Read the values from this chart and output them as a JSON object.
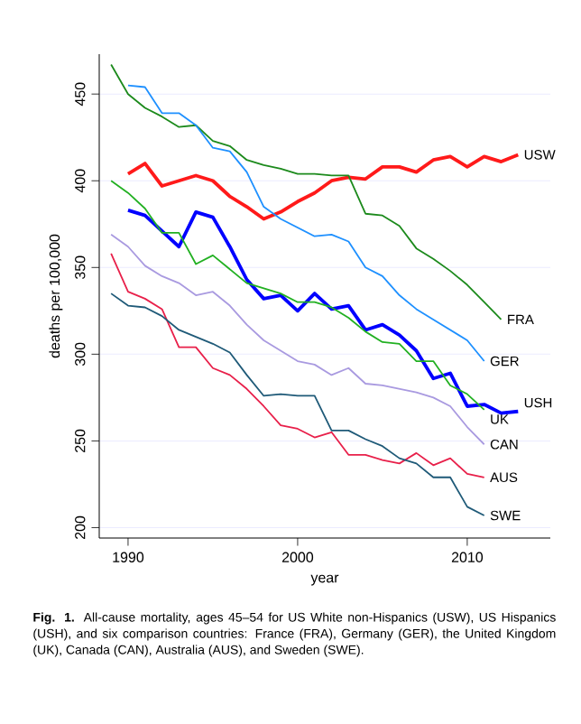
{
  "chart_data": {
    "type": "line",
    "xlabel": "year",
    "ylabel": "deaths per 100,000",
    "xlim": [
      1988.3,
      2014.9
    ],
    "ylim": [
      194,
      473
    ],
    "xticks": [
      1990,
      2000,
      2010
    ],
    "yticks": [
      200,
      250,
      300,
      350,
      400,
      450
    ],
    "grid": "y",
    "series": [
      {
        "name": "USW",
        "color": "#ff1a1a",
        "x": [
          1990,
          1991,
          1992,
          1993,
          1994,
          1995,
          1996,
          1997,
          1998,
          1999,
          2000,
          2001,
          2002,
          2003,
          2004,
          2005,
          2006,
          2007,
          2008,
          2009,
          2010,
          2011,
          2012,
          2013
        ],
        "values": [
          404,
          410,
          397,
          400,
          403,
          400,
          391,
          385,
          378,
          382,
          388,
          393,
          400,
          402,
          401,
          408,
          408,
          405,
          412,
          414,
          408,
          414,
          411,
          415
        ]
      },
      {
        "name": "FRA",
        "color": "#1c8a1c",
        "x": [
          1989,
          1990,
          1991,
          1992,
          1993,
          1994,
          1995,
          1996,
          1997,
          1998,
          1999,
          2000,
          2001,
          2002,
          2003,
          2004,
          2005,
          2006,
          2007,
          2008,
          2009,
          2010,
          2011,
          2012
        ],
        "values": [
          467,
          450,
          442,
          437,
          431,
          432,
          423,
          420,
          412,
          409,
          407,
          404,
          404,
          403,
          403,
          381,
          380,
          374,
          361,
          355,
          348,
          340,
          330,
          320
        ]
      },
      {
        "name": "GER",
        "color": "#1e90ff",
        "x": [
          1990,
          1991,
          1992,
          1993,
          1994,
          1995,
          1996,
          1997,
          1998,
          1999,
          2000,
          2001,
          2002,
          2003,
          2004,
          2005,
          2006,
          2007,
          2008,
          2009,
          2010,
          2011
        ],
        "values": [
          455,
          454,
          439,
          439,
          432,
          419,
          417,
          405,
          385,
          378,
          373,
          368,
          369,
          365,
          350,
          345,
          334,
          326,
          320,
          314,
          308,
          296
        ]
      },
      {
        "name": "USH",
        "color": "#0000ff",
        "x": [
          1990,
          1991,
          1992,
          1993,
          1994,
          1995,
          1996,
          1997,
          1998,
          1999,
          2000,
          2001,
          2002,
          2003,
          2004,
          2005,
          2006,
          2007,
          2008,
          2009,
          2010,
          2011,
          2012,
          2013
        ],
        "values": [
          383,
          380,
          371,
          362,
          382,
          379,
          362,
          343,
          332,
          334,
          325,
          335,
          326,
          328,
          314,
          317,
          311,
          302,
          286,
          289,
          270,
          271,
          266,
          267
        ]
      },
      {
        "name": "UK",
        "color": "#22b022",
        "x": [
          1989,
          1990,
          1991,
          1992,
          1993,
          1994,
          1995,
          1996,
          1997,
          1998,
          1999,
          2000,
          2001,
          2002,
          2003,
          2004,
          2005,
          2006,
          2007,
          2008,
          2009,
          2010,
          2011
        ],
        "values": [
          400,
          393,
          384,
          370,
          370,
          352,
          357,
          349,
          341,
          338,
          335,
          330,
          330,
          327,
          321,
          313,
          307,
          306,
          296,
          296,
          282,
          277,
          268
        ]
      },
      {
        "name": "CAN",
        "color": "#a99ae0",
        "x": [
          1989,
          1990,
          1991,
          1992,
          1993,
          1994,
          1995,
          1996,
          1997,
          1998,
          1999,
          2000,
          2001,
          2002,
          2003,
          2004,
          2005,
          2006,
          2007,
          2008,
          2009,
          2010,
          2011
        ],
        "values": [
          369,
          362,
          351,
          345,
          341,
          334,
          336,
          328,
          317,
          308,
          302,
          296,
          294,
          288,
          292,
          283,
          282,
          280,
          278,
          275,
          270,
          258,
          248
        ]
      },
      {
        "name": "AUS",
        "color": "#e8204a",
        "x": [
          1989,
          1990,
          1991,
          1992,
          1993,
          1994,
          1995,
          1996,
          1997,
          1998,
          1999,
          2000,
          2001,
          2002,
          2003,
          2004,
          2005,
          2006,
          2007,
          2008,
          2009,
          2010,
          2011
        ],
        "values": [
          358,
          336,
          332,
          326,
          304,
          304,
          292,
          288,
          280,
          270,
          259,
          257,
          252,
          255,
          242,
          242,
          239,
          237,
          243,
          236,
          240,
          231,
          229
        ]
      },
      {
        "name": "SWE",
        "color": "#1f5a78",
        "x": [
          1989,
          1990,
          1991,
          1992,
          1993,
          1994,
          1995,
          1996,
          1997,
          1998,
          1999,
          2000,
          2001,
          2002,
          2003,
          2004,
          2005,
          2006,
          2007,
          2008,
          2009,
          2010,
          2011
        ],
        "values": [
          335,
          328,
          327,
          322,
          314,
          310,
          306,
          301,
          288,
          276,
          277,
          276,
          276,
          256,
          256,
          251,
          247,
          240,
          237,
          229,
          229,
          212,
          207
        ]
      }
    ],
    "annotations": [
      "**Fig. 1.** All-cause mortality, ages 45–54 for US White non-Hispanics (USW), US Hispanics (USH), and six comparison countries: France (FRA), Germany (GER), the United Kingdom (UK), Canada (CAN), Australia (AUS), and Sweden (SWE)."
    ]
  }
}
